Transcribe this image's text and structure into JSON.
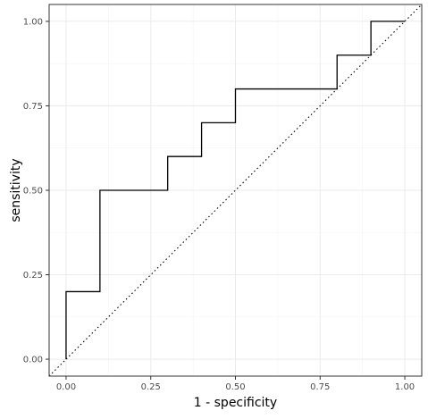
{
  "chart_data": {
    "type": "line",
    "title": "",
    "xlabel": "1 - specificity",
    "ylabel": "sensitivity",
    "xlim": [
      -0.05,
      1.05
    ],
    "ylim": [
      -0.05,
      1.05
    ],
    "x_ticks": [
      0.0,
      0.25,
      0.5,
      0.75,
      1.0
    ],
    "x_tick_labels": [
      "0.00",
      "0.25",
      "0.50",
      "0.75",
      "1.00"
    ],
    "y_ticks": [
      0.0,
      0.25,
      0.5,
      0.75,
      1.0
    ],
    "y_tick_labels": [
      "0.00",
      "0.25",
      "0.50",
      "0.75",
      "1.00"
    ],
    "grid": true,
    "series": [
      {
        "style": "step",
        "color": "#000000",
        "x": [
          0.0,
          0.0,
          0.1,
          0.1,
          0.3,
          0.3,
          0.4,
          0.4,
          0.5,
          0.5,
          0.8,
          0.8,
          0.9,
          0.9,
          1.0
        ],
        "y": [
          0.0,
          0.2,
          0.2,
          0.5,
          0.5,
          0.6,
          0.6,
          0.7,
          0.7,
          0.8,
          0.8,
          0.9,
          0.9,
          1.0,
          1.0
        ]
      },
      {
        "style": "dotted",
        "color": "#000000",
        "x": [
          -0.05,
          1.05
        ],
        "y": [
          -0.05,
          1.05
        ]
      }
    ]
  }
}
